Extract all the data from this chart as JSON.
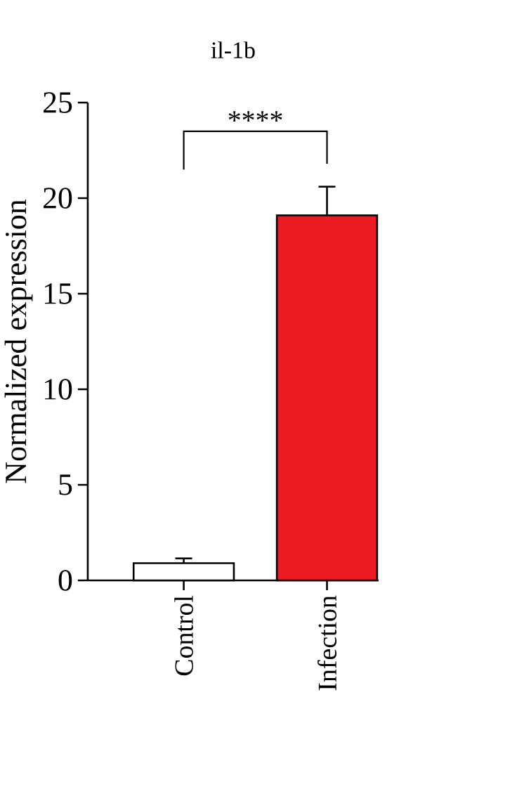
{
  "chart_data": {
    "type": "bar",
    "title": "il-1b",
    "ylabel": "Normalized expression",
    "categories": [
      "Control",
      "Infection"
    ],
    "values": [
      0.9,
      19.1
    ],
    "errors": [
      [
        0.9,
        1.15
      ],
      [
        19.1,
        20.6
      ]
    ],
    "colors": [
      "#ffffff",
      "#ed1c24"
    ],
    "ylim": [
      0,
      25
    ],
    "yticks": [
      0,
      5,
      10,
      15,
      20,
      25
    ],
    "annotations": [
      "****"
    ]
  }
}
